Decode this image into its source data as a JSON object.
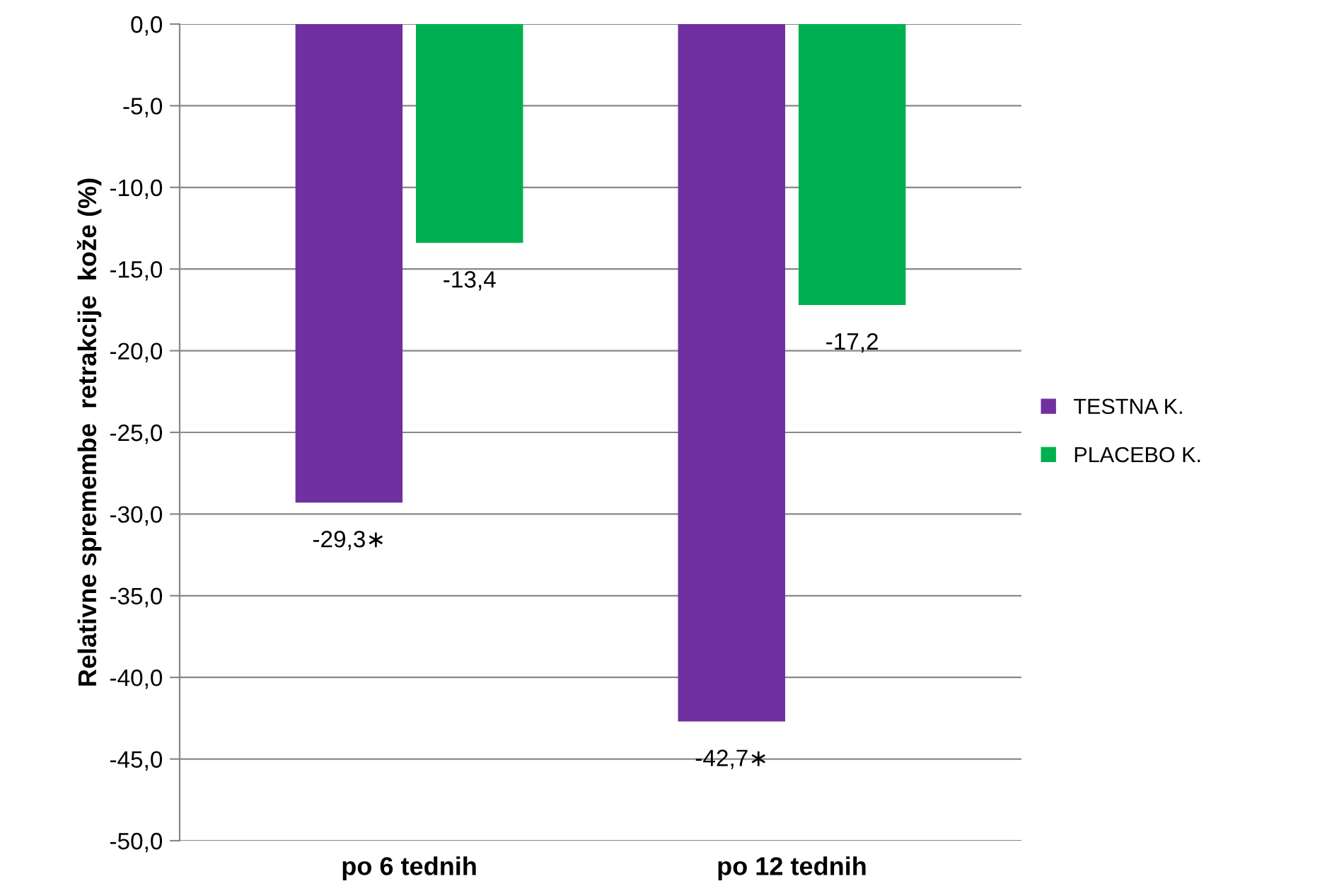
{
  "chart_data": {
    "type": "bar",
    "ylabel": "Relativne spremembe  retrakcije  kože (%)",
    "categories": [
      "po 6 tednih",
      "po 12 tednih"
    ],
    "series": [
      {
        "name": "TESTNA K.",
        "color": "#7030a0",
        "values": [
          -29.3,
          -42.7
        ],
        "value_labels": [
          "-29,3∗",
          "-42,7∗"
        ]
      },
      {
        "name": "PLACEBO K.",
        "color": "#00b050",
        "values": [
          -13.4,
          -17.2
        ],
        "value_labels": [
          "-13,4",
          "-17,2"
        ]
      }
    ],
    "ylim": [
      -50,
      0
    ],
    "yticks": [
      {
        "value": 0,
        "label": "0,0"
      },
      {
        "value": -5,
        "label": "-5,0"
      },
      {
        "value": -10,
        "label": "-10,0"
      },
      {
        "value": -15,
        "label": "-15,0"
      },
      {
        "value": -20,
        "label": "-20,0"
      },
      {
        "value": -25,
        "label": "-25,0"
      },
      {
        "value": -30,
        "label": "-30,0"
      },
      {
        "value": -35,
        "label": "-35,0"
      },
      {
        "value": -40,
        "label": "-40,0"
      },
      {
        "value": -45,
        "label": "-45,0"
      },
      {
        "value": -50,
        "label": "-50,0"
      }
    ],
    "grid": "y",
    "legend": "right"
  }
}
